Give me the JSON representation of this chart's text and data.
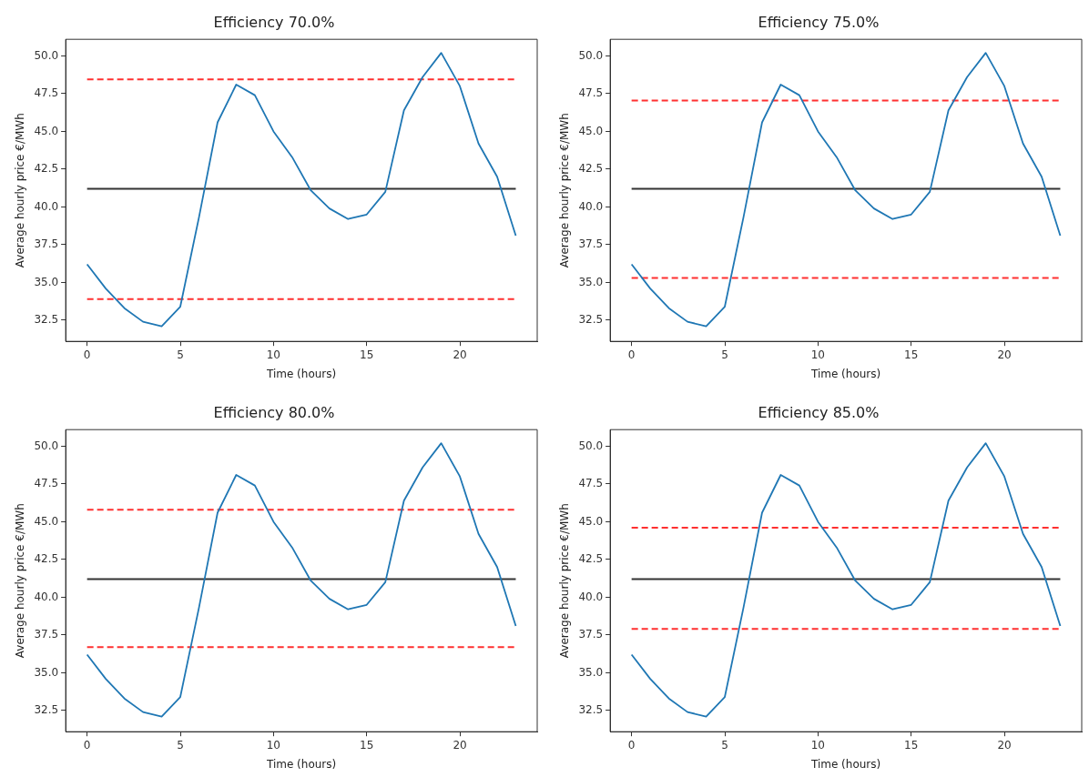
{
  "chart_data": [
    {
      "type": "line",
      "title": "Efficiency 70.0%",
      "xlabel": "Time (hours)",
      "ylabel": "Average hourly price €/MWh",
      "x": [
        0,
        1,
        2,
        3,
        4,
        5,
        6,
        7,
        8,
        9,
        10,
        11,
        12,
        13,
        14,
        15,
        16,
        17,
        18,
        19,
        20,
        21,
        22,
        23
      ],
      "values": [
        36.2,
        34.6,
        33.3,
        32.4,
        32.1,
        33.4,
        39.3,
        45.6,
        48.1,
        47.4,
        45.0,
        43.3,
        41.1,
        39.9,
        39.2,
        39.5,
        41.0,
        46.4,
        48.6,
        50.2,
        48.0,
        44.2,
        42.0,
        38.1
      ],
      "color": "#1f77b4",
      "xlim": [
        -1.15,
        24.15
      ],
      "xticks": [
        0,
        5,
        10,
        15,
        20
      ],
      "ylim": [
        31.1,
        51.1
      ],
      "yticks": [
        {
          "value": 32.5,
          "label": "32.5"
        },
        {
          "value": 35,
          "label": "35.0"
        },
        {
          "value": 37.5,
          "label": "37.5"
        },
        {
          "value": 40,
          "label": "40.0"
        },
        {
          "value": 42.5,
          "label": "42.5"
        },
        {
          "value": 45,
          "label": "45.0"
        },
        {
          "value": 47.5,
          "label": "47.5"
        },
        {
          "value": 50,
          "label": "50.0"
        }
      ],
      "grid": false,
      "ref_lines": [
        {
          "axis": "y",
          "value": 48.45,
          "color": "#ff3030",
          "line_style": "dashed"
        },
        {
          "axis": "y",
          "value": 33.9,
          "color": "#ff3030",
          "line_style": "dashed"
        },
        {
          "axis": "y",
          "value": 41.2,
          "color": "#333333",
          "line_style": "solid"
        }
      ]
    },
    {
      "type": "line",
      "title": "Efficiency 75.0%",
      "xlabel": "Time (hours)",
      "ylabel": "Average hourly price €/MWh",
      "x": [
        0,
        1,
        2,
        3,
        4,
        5,
        6,
        7,
        8,
        9,
        10,
        11,
        12,
        13,
        14,
        15,
        16,
        17,
        18,
        19,
        20,
        21,
        22,
        23
      ],
      "values": [
        36.2,
        34.6,
        33.3,
        32.4,
        32.1,
        33.4,
        39.3,
        45.6,
        48.1,
        47.4,
        45.0,
        43.3,
        41.1,
        39.9,
        39.2,
        39.5,
        41.0,
        46.4,
        48.6,
        50.2,
        48.0,
        44.2,
        42.0,
        38.1
      ],
      "color": "#1f77b4",
      "xlim": [
        -1.15,
        24.15
      ],
      "xticks": [
        0,
        5,
        10,
        15,
        20
      ],
      "ylim": [
        31.1,
        51.1
      ],
      "yticks": [
        {
          "value": 32.5,
          "label": "32.5"
        },
        {
          "value": 35,
          "label": "35.0"
        },
        {
          "value": 37.5,
          "label": "37.5"
        },
        {
          "value": 40,
          "label": "40.0"
        },
        {
          "value": 42.5,
          "label": "42.5"
        },
        {
          "value": 45,
          "label": "45.0"
        },
        {
          "value": 47.5,
          "label": "47.5"
        },
        {
          "value": 50,
          "label": "50.0"
        }
      ],
      "grid": false,
      "ref_lines": [
        {
          "axis": "y",
          "value": 47.05,
          "color": "#ff3030",
          "line_style": "dashed"
        },
        {
          "axis": "y",
          "value": 35.3,
          "color": "#ff3030",
          "line_style": "dashed"
        },
        {
          "axis": "y",
          "value": 41.2,
          "color": "#333333",
          "line_style": "solid"
        }
      ]
    },
    {
      "type": "line",
      "title": "Efficiency 80.0%",
      "xlabel": "Time (hours)",
      "ylabel": "Average hourly price €/MWh",
      "x": [
        0,
        1,
        2,
        3,
        4,
        5,
        6,
        7,
        8,
        9,
        10,
        11,
        12,
        13,
        14,
        15,
        16,
        17,
        18,
        19,
        20,
        21,
        22,
        23
      ],
      "values": [
        36.2,
        34.6,
        33.3,
        32.4,
        32.1,
        33.4,
        39.3,
        45.6,
        48.1,
        47.4,
        45.0,
        43.3,
        41.1,
        39.9,
        39.2,
        39.5,
        41.0,
        46.4,
        48.6,
        50.2,
        48.0,
        44.2,
        42.0,
        38.1
      ],
      "color": "#1f77b4",
      "xlim": [
        -1.15,
        24.15
      ],
      "xticks": [
        0,
        5,
        10,
        15,
        20
      ],
      "ylim": [
        31.1,
        51.1
      ],
      "yticks": [
        {
          "value": 32.5,
          "label": "32.5"
        },
        {
          "value": 35,
          "label": "35.0"
        },
        {
          "value": 37.5,
          "label": "37.5"
        },
        {
          "value": 40,
          "label": "40.0"
        },
        {
          "value": 42.5,
          "label": "42.5"
        },
        {
          "value": 45,
          "label": "45.0"
        },
        {
          "value": 47.5,
          "label": "47.5"
        },
        {
          "value": 50,
          "label": "50.0"
        }
      ],
      "grid": false,
      "ref_lines": [
        {
          "axis": "y",
          "value": 45.8,
          "color": "#ff3030",
          "line_style": "dashed"
        },
        {
          "axis": "y",
          "value": 36.7,
          "color": "#ff3030",
          "line_style": "dashed"
        },
        {
          "axis": "y",
          "value": 41.2,
          "color": "#333333",
          "line_style": "solid"
        }
      ]
    },
    {
      "type": "line",
      "title": "Efficiency 85.0%",
      "xlabel": "Time (hours)",
      "ylabel": "Average hourly price €/MWh",
      "x": [
        0,
        1,
        2,
        3,
        4,
        5,
        6,
        7,
        8,
        9,
        10,
        11,
        12,
        13,
        14,
        15,
        16,
        17,
        18,
        19,
        20,
        21,
        22,
        23
      ],
      "values": [
        36.2,
        34.6,
        33.3,
        32.4,
        32.1,
        33.4,
        39.3,
        45.6,
        48.1,
        47.4,
        45.0,
        43.3,
        41.1,
        39.9,
        39.2,
        39.5,
        41.0,
        46.4,
        48.6,
        50.2,
        48.0,
        44.2,
        42.0,
        38.1
      ],
      "color": "#1f77b4",
      "xlim": [
        -1.15,
        24.15
      ],
      "xticks": [
        0,
        5,
        10,
        15,
        20
      ],
      "ylim": [
        31.1,
        51.1
      ],
      "yticks": [
        {
          "value": 32.5,
          "label": "32.5"
        },
        {
          "value": 35,
          "label": "35.0"
        },
        {
          "value": 37.5,
          "label": "37.5"
        },
        {
          "value": 40,
          "label": "40.0"
        },
        {
          "value": 42.5,
          "label": "42.5"
        },
        {
          "value": 45,
          "label": "45.0"
        },
        {
          "value": 47.5,
          "label": "47.5"
        },
        {
          "value": 50,
          "label": "50.0"
        }
      ],
      "grid": false,
      "ref_lines": [
        {
          "axis": "y",
          "value": 44.6,
          "color": "#ff3030",
          "line_style": "dashed"
        },
        {
          "axis": "y",
          "value": 37.9,
          "color": "#ff3030",
          "line_style": "dashed"
        },
        {
          "axis": "y",
          "value": 41.2,
          "color": "#333333",
          "line_style": "solid"
        }
      ]
    }
  ]
}
